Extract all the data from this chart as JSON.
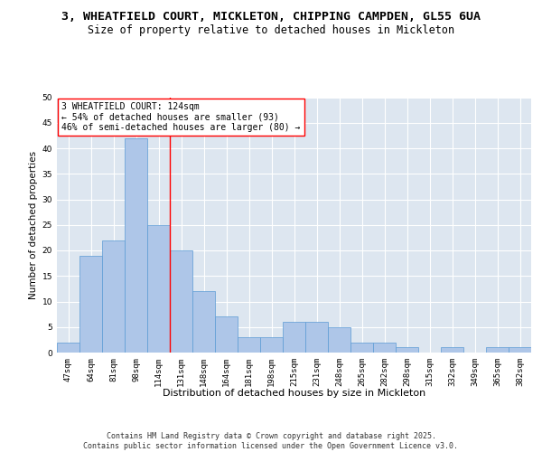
{
  "title": "3, WHEATFIELD COURT, MICKLETON, CHIPPING CAMPDEN, GL55 6UA",
  "subtitle": "Size of property relative to detached houses in Mickleton",
  "xlabel": "Distribution of detached houses by size in Mickleton",
  "ylabel": "Number of detached properties",
  "categories": [
    "47sqm",
    "64sqm",
    "81sqm",
    "98sqm",
    "114sqm",
    "131sqm",
    "148sqm",
    "164sqm",
    "181sqm",
    "198sqm",
    "215sqm",
    "231sqm",
    "248sqm",
    "265sqm",
    "282sqm",
    "298sqm",
    "315sqm",
    "332sqm",
    "349sqm",
    "365sqm",
    "382sqm"
  ],
  "values": [
    2,
    19,
    22,
    42,
    25,
    20,
    12,
    7,
    3,
    3,
    6,
    6,
    5,
    2,
    2,
    1,
    0,
    1,
    0,
    1,
    1
  ],
  "bar_color": "#aec6e8",
  "bar_edge_color": "#5b9bd5",
  "background_color": "#dde6f0",
  "grid_color": "#ffffff",
  "vline_x": 4.5,
  "vline_color": "red",
  "annotation_text": "3 WHEATFIELD COURT: 124sqm\n← 54% of detached houses are smaller (93)\n46% of semi-detached houses are larger (80) →",
  "annotation_box_color": "white",
  "annotation_box_edge": "red",
  "ylim": [
    0,
    50
  ],
  "yticks": [
    0,
    5,
    10,
    15,
    20,
    25,
    30,
    35,
    40,
    45,
    50
  ],
  "footer": "Contains HM Land Registry data © Crown copyright and database right 2025.\nContains public sector information licensed under the Open Government Licence v3.0.",
  "title_fontsize": 9.5,
  "subtitle_fontsize": 8.5,
  "xlabel_fontsize": 8,
  "ylabel_fontsize": 7.5,
  "tick_fontsize": 6.5,
  "annotation_fontsize": 7,
  "footer_fontsize": 6
}
